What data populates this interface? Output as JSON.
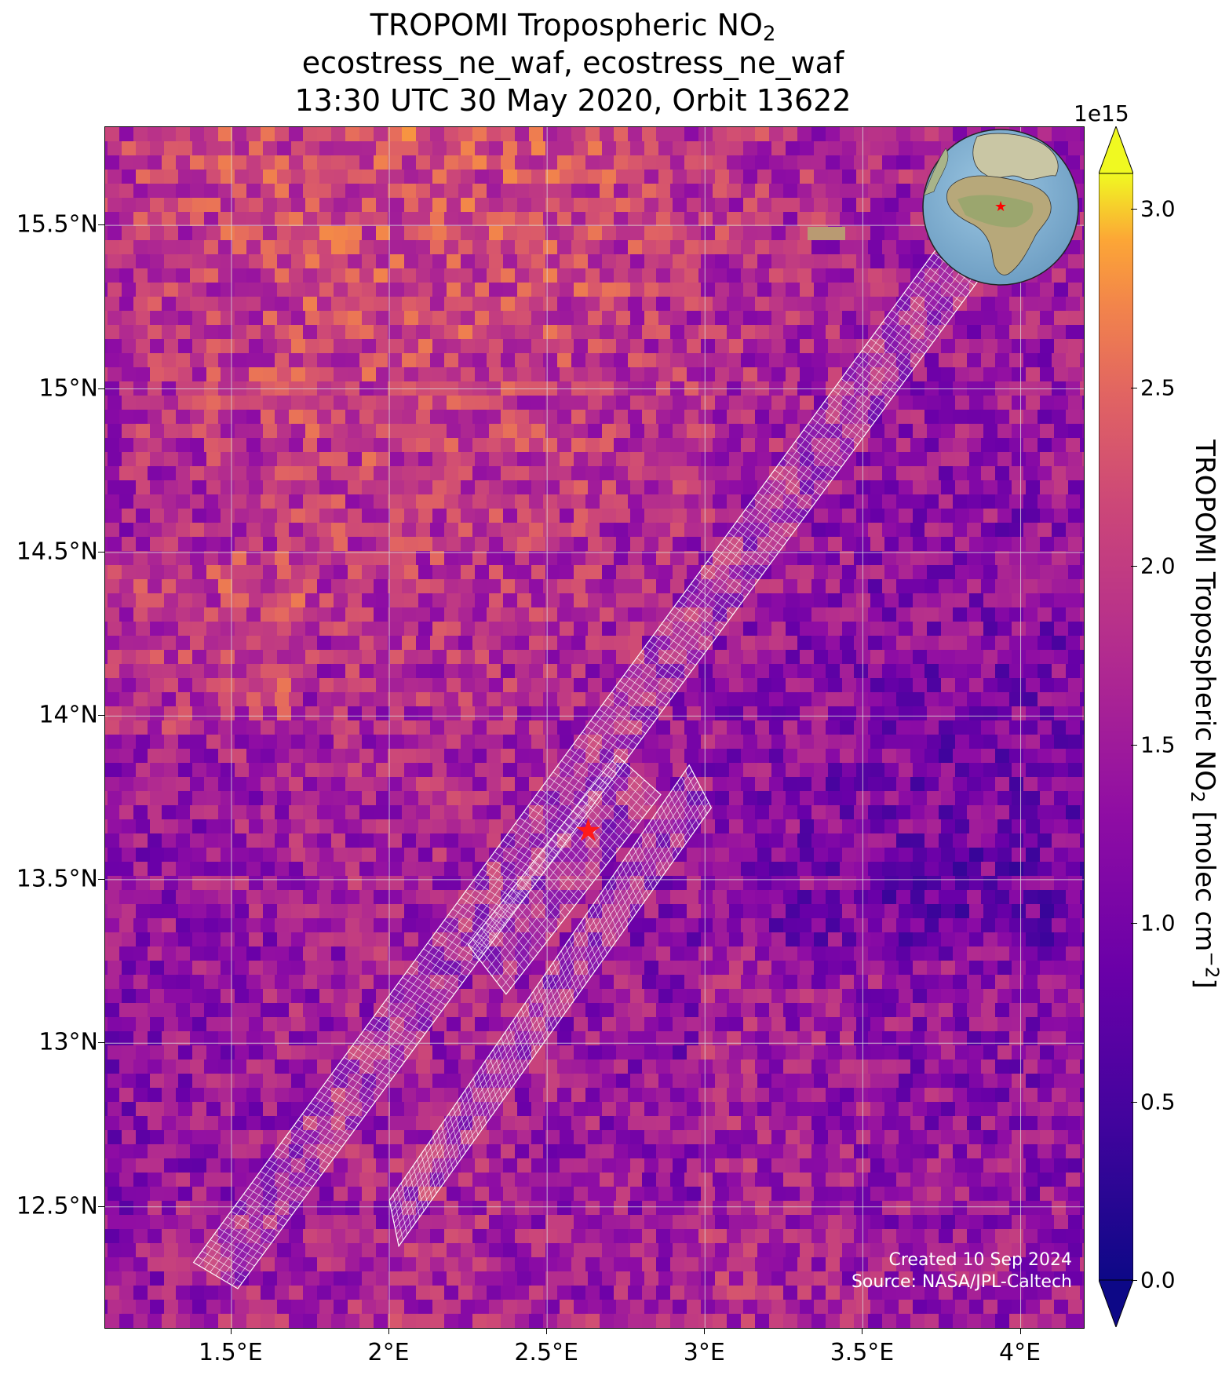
{
  "title": {
    "line1_prefix": "TROPOMI Tropospheric NO",
    "line1_sub": "2",
    "line2": "ecostress_ne_waf, ecostress_ne_waf",
    "line3": "13:30 UTC 30 May 2020, Orbit 13622"
  },
  "map": {
    "lon_range": [
      1.1,
      4.2
    ],
    "lat_range": [
      12.13,
      15.8
    ],
    "x_ticks": [
      "1.5°E",
      "2°E",
      "2.5°E",
      "3°E",
      "3.5°E",
      "4°E"
    ],
    "x_tick_values": [
      1.5,
      2.0,
      2.5,
      3.0,
      3.5,
      4.0
    ],
    "y_ticks": [
      "15.5°N",
      "15°N",
      "14.5°N",
      "14°N",
      "13.5°N",
      "13°N",
      "12.5°N"
    ],
    "y_tick_values": [
      15.5,
      15.0,
      14.5,
      14.0,
      13.5,
      13.0,
      12.5
    ],
    "grid": true,
    "site_marker": {
      "lon": 2.63,
      "lat": 13.65,
      "symbol": "red-star"
    },
    "swaths": [
      {
        "name": "north-swath",
        "corners": [
          [
            1.38,
            12.33
          ],
          [
            3.75,
            15.45
          ],
          [
            3.88,
            15.35
          ],
          [
            1.52,
            12.25
          ]
        ]
      },
      {
        "name": "south-swath",
        "corners": [
          [
            2.0,
            12.52
          ],
          [
            2.95,
            13.85
          ],
          [
            3.02,
            13.72
          ],
          [
            2.03,
            12.38
          ]
        ]
      },
      {
        "name": "mid-swath-fragment",
        "corners": [
          [
            2.25,
            13.3
          ],
          [
            2.72,
            13.88
          ],
          [
            2.86,
            13.76
          ],
          [
            2.37,
            13.15
          ]
        ]
      }
    ],
    "inset_globe": {
      "description_icon": "globe-icon",
      "marker": "red-star"
    }
  },
  "colorbar": {
    "exponent_label": "1e15",
    "ticks": [
      "0.0",
      "0.5",
      "1.0",
      "1.5",
      "2.0",
      "2.5",
      "3.0"
    ],
    "tick_values": [
      0.0,
      0.5,
      1.0,
      1.5,
      2.0,
      2.5,
      3.0
    ],
    "range": [
      0.0,
      3.1
    ],
    "label_prefix": "TROPOMI Tropospheric NO",
    "label_sub": "2",
    "label_mid": " [molec cm",
    "label_sup": "−2",
    "label_end": "]",
    "colormap": "plasma"
  },
  "credit": {
    "line1": "Created 10 Sep 2024",
    "line2": "Source: NASA/JPL-Caltech"
  }
}
